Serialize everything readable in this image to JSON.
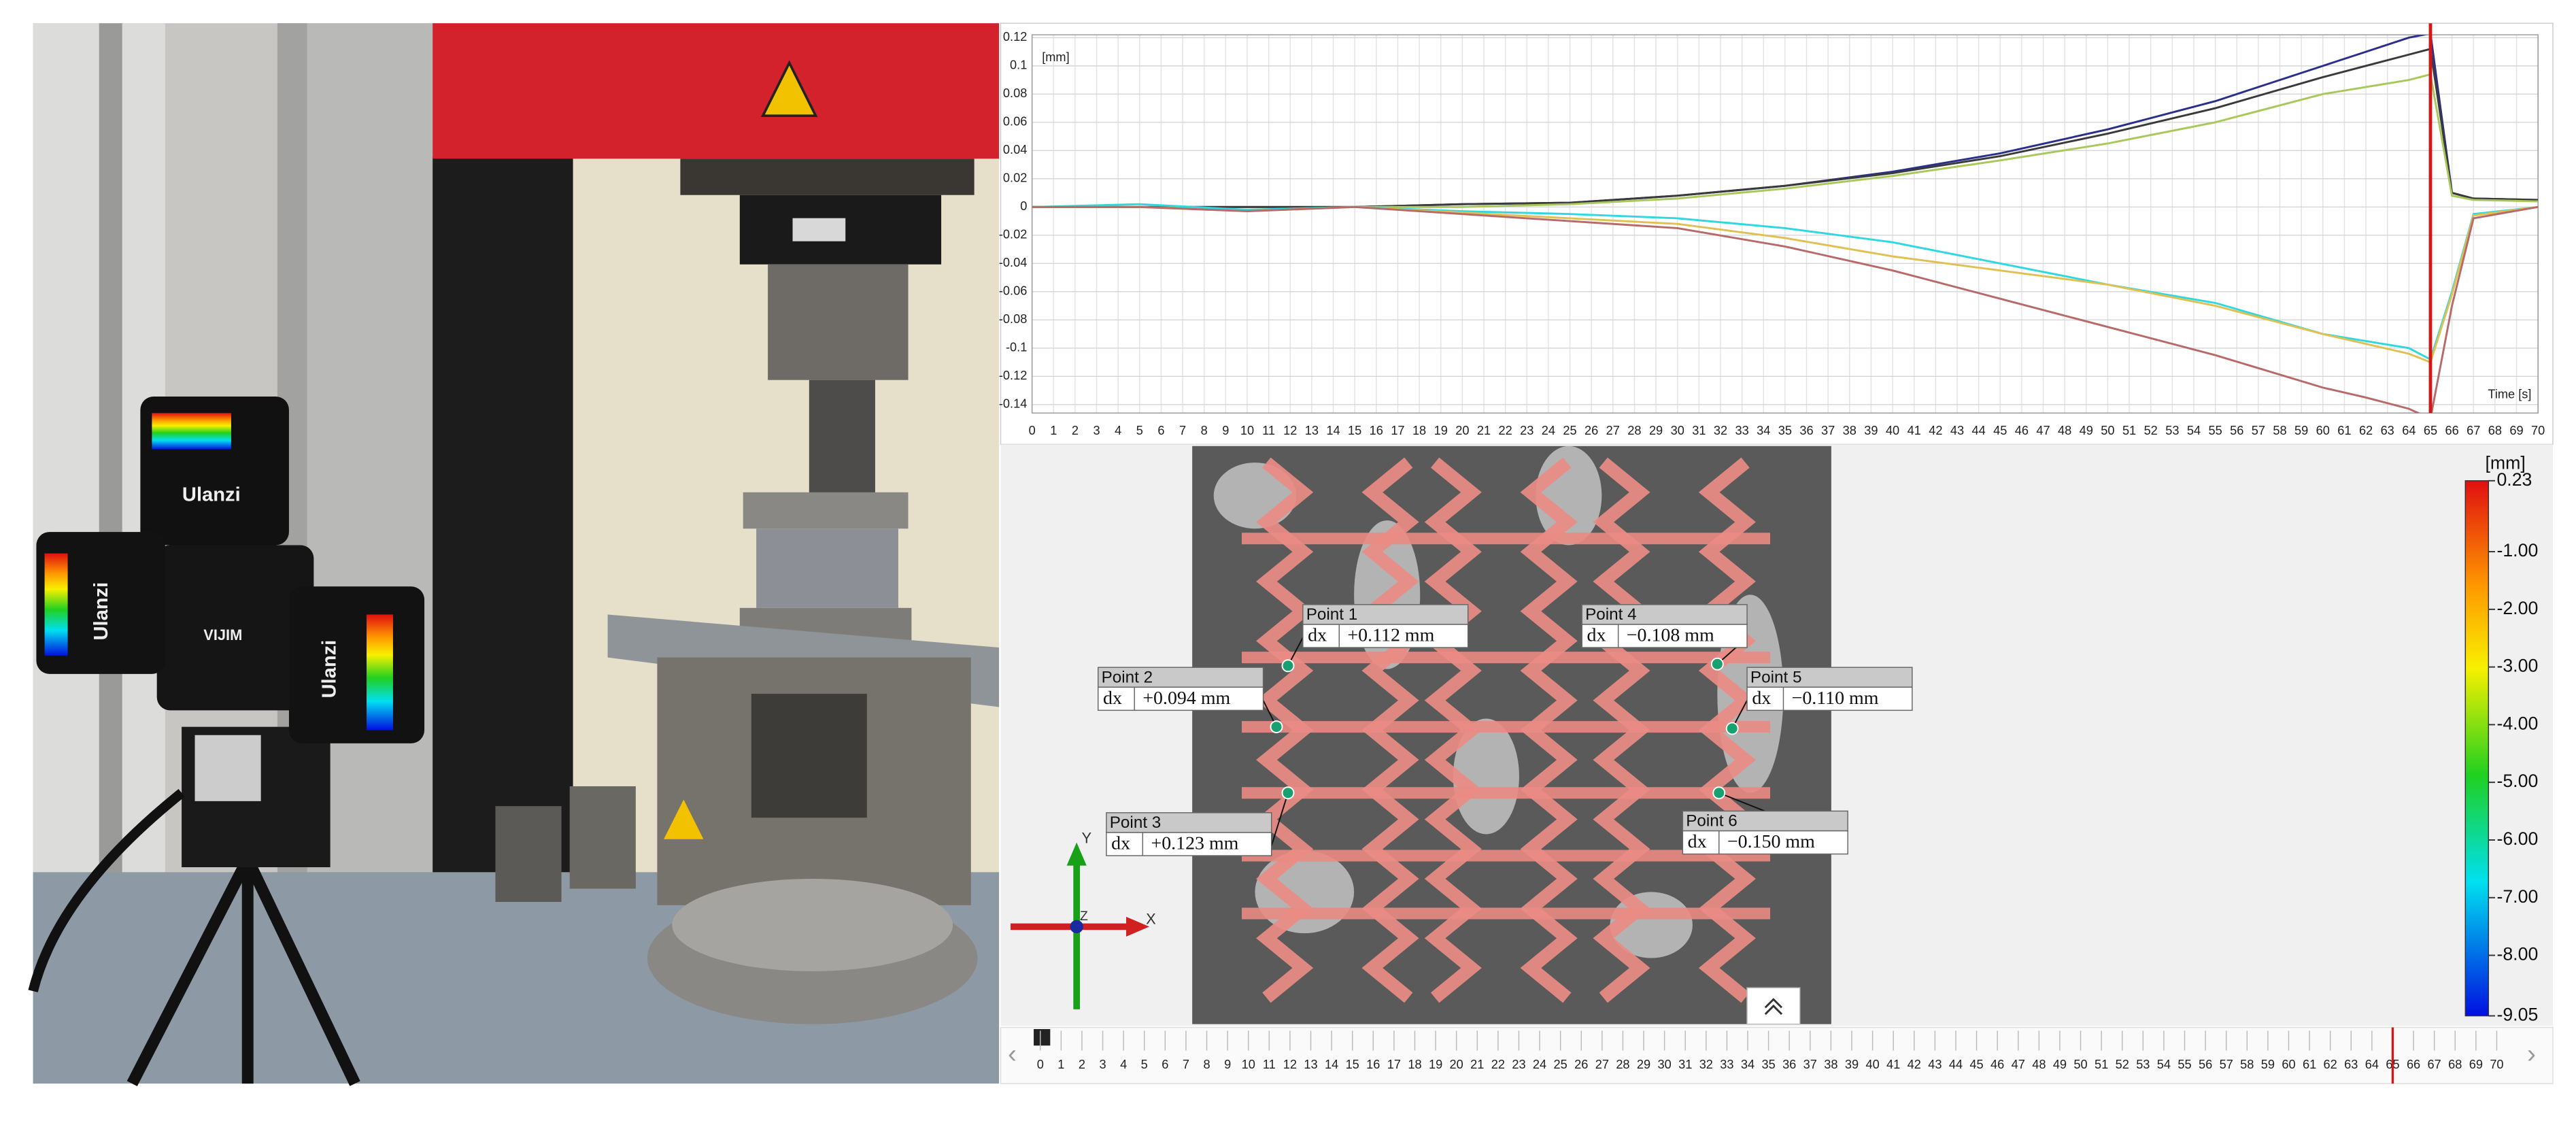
{
  "chart_data": {
    "type": "line",
    "y_unit": "[mm]",
    "x_label": "Time [s]",
    "x": [
      0,
      5,
      10,
      15,
      20,
      25,
      30,
      35,
      40,
      45,
      50,
      55,
      60,
      62,
      64,
      65,
      66,
      67,
      70
    ],
    "series": [
      {
        "color": "#2b2f8c",
        "values": [
          0,
          0,
          0,
          0,
          0.002,
          0.003,
          0.008,
          0.015,
          0.025,
          0.038,
          0.055,
          0.075,
          0.1,
          0.11,
          0.12,
          0.123,
          0.01,
          0.006,
          0.005
        ]
      },
      {
        "color": "#3a3a3a",
        "values": [
          0,
          0,
          0,
          0,
          0.002,
          0.003,
          0.008,
          0.015,
          0.024,
          0.036,
          0.052,
          0.07,
          0.092,
          0.1,
          0.108,
          0.112,
          0.01,
          0.006,
          0.005
        ]
      },
      {
        "color": "#a8c85a",
        "values": [
          0,
          0,
          -0.002,
          0,
          0,
          0.002,
          0.006,
          0.013,
          0.022,
          0.033,
          0.045,
          0.06,
          0.08,
          0.085,
          0.09,
          0.094,
          0.008,
          0.005,
          0.004
        ]
      },
      {
        "color": "#2fd8e0",
        "values": [
          0,
          0.002,
          -0.002,
          0,
          -0.003,
          -0.005,
          -0.008,
          -0.015,
          -0.025,
          -0.04,
          -0.055,
          -0.068,
          -0.09,
          -0.095,
          -0.1,
          -0.108,
          -0.06,
          -0.005,
          0
        ]
      },
      {
        "color": "#e0c050",
        "values": [
          0,
          0,
          -0.003,
          0,
          -0.004,
          -0.008,
          -0.012,
          -0.022,
          -0.035,
          -0.045,
          -0.055,
          -0.07,
          -0.09,
          -0.097,
          -0.104,
          -0.11,
          -0.062,
          -0.006,
          0
        ]
      },
      {
        "color": "#b86a6a",
        "values": [
          0,
          0,
          -0.003,
          0,
          -0.005,
          -0.01,
          -0.015,
          -0.028,
          -0.045,
          -0.065,
          -0.085,
          -0.105,
          -0.128,
          -0.135,
          -0.143,
          -0.15,
          -0.07,
          -0.008,
          0
        ]
      }
    ],
    "xlim": [
      0,
      70
    ],
    "xticks": [
      0,
      1,
      2,
      3,
      4,
      5,
      6,
      7,
      8,
      9,
      10,
      11,
      12,
      13,
      14,
      15,
      16,
      17,
      18,
      19,
      20,
      21,
      22,
      23,
      24,
      25,
      26,
      27,
      28,
      29,
      30,
      31,
      32,
      33,
      34,
      35,
      36,
      37,
      38,
      39,
      40,
      41,
      42,
      43,
      44,
      45,
      46,
      47,
      48,
      49,
      50,
      51,
      52,
      53,
      54,
      55,
      56,
      57,
      58,
      59,
      60,
      61,
      62,
      63,
      64,
      65,
      66,
      67,
      68,
      69,
      70
    ],
    "ylim": [
      -0.146,
      0.122
    ],
    "yticks": [
      0.12,
      0.1,
      0.08,
      0.06,
      0.04,
      0.02,
      0,
      -0.02,
      -0.04,
      -0.06,
      -0.08,
      -0.1,
      -0.12,
      -0.14
    ],
    "cursor_x": 65,
    "cursor_color": "#d01818",
    "grid": true
  },
  "points": [
    {
      "label": "Point 1",
      "component": "dx",
      "value": "+0.112 mm"
    },
    {
      "label": "Point 2",
      "component": "dx",
      "value": "+0.094 mm"
    },
    {
      "label": "Point 3",
      "component": "dx",
      "value": "+0.123 mm"
    },
    {
      "label": "Point 4",
      "component": "dx",
      "value": "−0.108 mm"
    },
    {
      "label": "Point 5",
      "component": "dx",
      "value": "−0.110 mm"
    },
    {
      "label": "Point 6",
      "component": "dx",
      "value": "−0.150 mm"
    }
  ],
  "axes_gizmo": {
    "y": "Y",
    "x": "X",
    "z": "Z"
  },
  "colorbar": {
    "unit": "[mm]",
    "lim": [
      -9.05,
      0.23
    ],
    "ticks": [
      {
        "value": 0.23,
        "label": "0.23"
      },
      {
        "value": -1,
        "label": "-1.00"
      },
      {
        "value": -2,
        "label": "-2.00"
      },
      {
        "value": -3,
        "label": "-3.00"
      },
      {
        "value": -4,
        "label": "-4.00"
      },
      {
        "value": -5,
        "label": "-5.00"
      },
      {
        "value": -6,
        "label": "-6.00"
      },
      {
        "value": -7,
        "label": "-7.00"
      },
      {
        "value": -8,
        "label": "-8.00"
      },
      {
        "value": -9.05,
        "label": "-9.05"
      }
    ]
  },
  "timeline": {
    "ticks": [
      0,
      1,
      2,
      3,
      4,
      5,
      6,
      7,
      8,
      9,
      10,
      11,
      12,
      13,
      14,
      15,
      16,
      17,
      18,
      19,
      20,
      21,
      22,
      23,
      24,
      25,
      26,
      27,
      28,
      29,
      30,
      31,
      32,
      33,
      34,
      35,
      36,
      37,
      38,
      39,
      40,
      41,
      42,
      43,
      44,
      45,
      46,
      47,
      48,
      49,
      50,
      51,
      52,
      53,
      54,
      55,
      56,
      57,
      58,
      59,
      60,
      61,
      62,
      63,
      64,
      65,
      66,
      67,
      68,
      69,
      70
    ],
    "cursor": 65
  },
  "photo": {
    "texts": [
      "Ulanzi",
      "Ulanzi",
      "Ulanzi",
      "VIJIM"
    ]
  }
}
